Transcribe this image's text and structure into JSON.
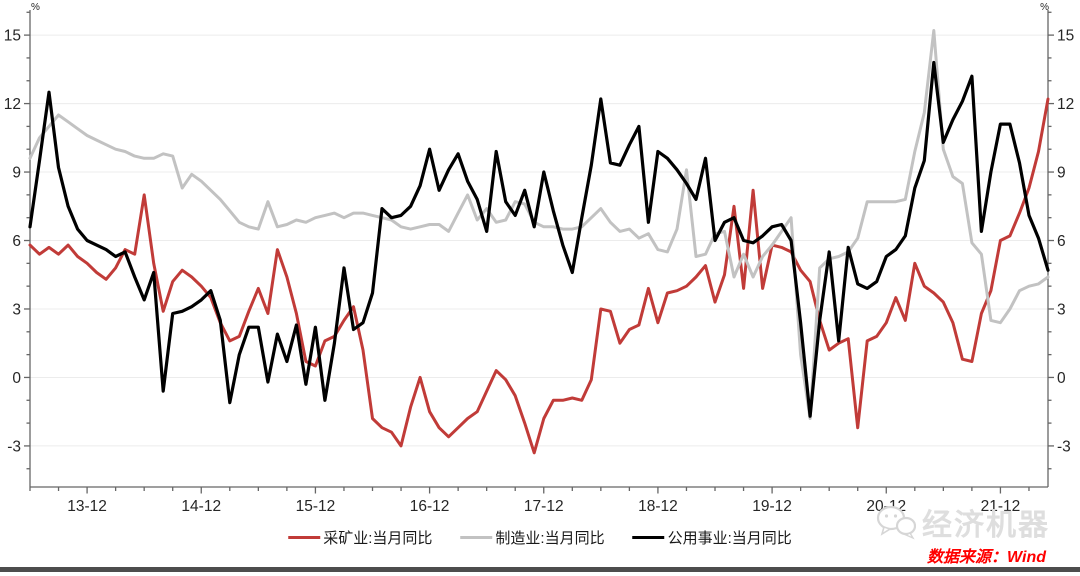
{
  "chart_data": {
    "type": "line",
    "title": "",
    "y_unit": "%",
    "ylim": [
      -4.8,
      16.1
    ],
    "y_ticks": [
      -3,
      0,
      3,
      6,
      9,
      12,
      15
    ],
    "y_minor_step": 1,
    "grid": "horizontal",
    "legend_position": "bottom",
    "x_interval": "month",
    "x_start_month": "2013-06",
    "x_tick_labels": [
      "13-12",
      "14-12",
      "15-12",
      "16-12",
      "17-12",
      "18-12",
      "19-12",
      "20-12",
      "21-12"
    ],
    "series": [
      {
        "name": "采矿业:当月同比",
        "color": "#C13B38",
        "values": [
          5.8,
          5.4,
          5.7,
          5.4,
          5.8,
          5.3,
          5.0,
          4.6,
          4.3,
          4.8,
          5.6,
          5.4,
          8.0,
          5.0,
          2.9,
          4.2,
          4.7,
          4.4,
          4.0,
          3.5,
          2.4,
          1.6,
          1.8,
          2.9,
          3.9,
          2.8,
          5.6,
          4.4,
          2.8,
          0.7,
          0.5,
          1.6,
          1.8,
          2.5,
          3.1,
          1.2,
          -1.8,
          -2.2,
          -2.4,
          -3.0,
          -1.3,
          0.0,
          -1.5,
          -2.2,
          -2.6,
          -2.2,
          -1.8,
          -1.5,
          -0.6,
          0.3,
          -0.1,
          -0.8,
          -2.0,
          -3.3,
          -1.8,
          -1.0,
          -1.0,
          -0.9,
          -1.0,
          -0.1,
          3.0,
          2.9,
          1.5,
          2.1,
          2.3,
          3.9,
          2.4,
          3.7,
          3.8,
          4.0,
          4.4,
          4.9,
          3.3,
          4.5,
          7.5,
          3.9,
          8.2,
          3.9,
          5.8,
          5.7,
          5.5,
          4.7,
          4.2,
          2.5,
          1.2,
          1.5,
          1.7,
          -2.2,
          1.6,
          1.8,
          2.4,
          3.5,
          2.5,
          5.0,
          4.0,
          3.7,
          3.3,
          2.4,
          0.8,
          0.7,
          2.8,
          3.8,
          6.0,
          6.2,
          7.2,
          8.3,
          9.9,
          12.2
        ]
      },
      {
        "name": "制造业:当月同比",
        "color": "#C2C2C2",
        "values": [
          9.6,
          10.5,
          11.0,
          11.5,
          11.2,
          10.9,
          10.6,
          10.4,
          10.2,
          10.0,
          9.9,
          9.7,
          9.6,
          9.6,
          9.8,
          9.7,
          8.3,
          8.9,
          8.6,
          8.2,
          7.8,
          7.3,
          6.8,
          6.6,
          6.5,
          7.7,
          6.6,
          6.7,
          6.9,
          6.8,
          7.0,
          7.1,
          7.2,
          7.0,
          7.2,
          7.2,
          7.1,
          7.0,
          6.9,
          6.6,
          6.5,
          6.6,
          6.7,
          6.7,
          6.4,
          7.2,
          8.0,
          6.9,
          7.4,
          6.8,
          6.9,
          7.7,
          7.6,
          6.8,
          6.6,
          6.6,
          6.5,
          6.5,
          6.6,
          7.0,
          7.4,
          6.8,
          6.4,
          6.5,
          6.1,
          6.3,
          5.6,
          5.5,
          6.5,
          9.1,
          5.3,
          5.4,
          6.3,
          6.4,
          4.4,
          5.4,
          4.4,
          5.3,
          5.8,
          6.4,
          7.0,
          1.0,
          -1.8,
          4.8,
          5.2,
          5.3,
          5.5,
          6.1,
          7.7,
          7.7,
          7.7,
          7.7,
          7.8,
          9.9,
          11.6,
          15.2,
          10.0,
          8.8,
          8.5,
          5.9,
          5.4,
          2.5,
          2.4,
          3.0,
          3.8,
          4.0,
          4.1,
          4.4
        ]
      },
      {
        "name": "公用事业:当月同比",
        "color": "#000000",
        "values": [
          6.6,
          9.5,
          12.5,
          9.2,
          7.5,
          6.5,
          6.0,
          5.8,
          5.6,
          5.3,
          5.5,
          4.4,
          3.4,
          4.6,
          -0.6,
          2.8,
          2.9,
          3.1,
          3.4,
          3.8,
          2.5,
          -1.1,
          1.0,
          2.2,
          2.2,
          -0.2,
          1.9,
          0.7,
          2.3,
          -0.3,
          2.2,
          -1.0,
          1.5,
          4.8,
          2.1,
          2.4,
          3.7,
          7.4,
          7.0,
          7.1,
          7.5,
          8.4,
          10.0,
          8.2,
          9.1,
          9.8,
          8.6,
          7.8,
          6.4,
          9.9,
          7.7,
          7.1,
          8.2,
          6.6,
          9.0,
          7.3,
          5.8,
          4.6,
          7.0,
          9.3,
          12.2,
          9.4,
          9.3,
          10.2,
          11.0,
          6.8,
          9.9,
          9.6,
          9.1,
          8.5,
          7.8,
          9.6,
          6.0,
          6.8,
          7.0,
          6.0,
          5.9,
          6.2,
          6.6,
          6.7,
          6.0,
          2.4,
          -1.7,
          2.5,
          5.5,
          1.6,
          5.7,
          4.1,
          3.9,
          4.2,
          5.3,
          5.6,
          6.2,
          8.3,
          9.5,
          13.8,
          10.3,
          11.3,
          12.1,
          13.2,
          6.4,
          9.0,
          11.1,
          11.1,
          9.4,
          7.1,
          6.1,
          4.7
        ]
      }
    ],
    "colors": {
      "axis": "#666666",
      "grid": "#ECECEC",
      "tick_text": "#262626"
    }
  },
  "watermark": {
    "brand_text": "经济机器",
    "icon": "wechat-icon"
  },
  "footer": {
    "source_note": "数据来源：Wind",
    "source_color": "#FF0000"
  }
}
